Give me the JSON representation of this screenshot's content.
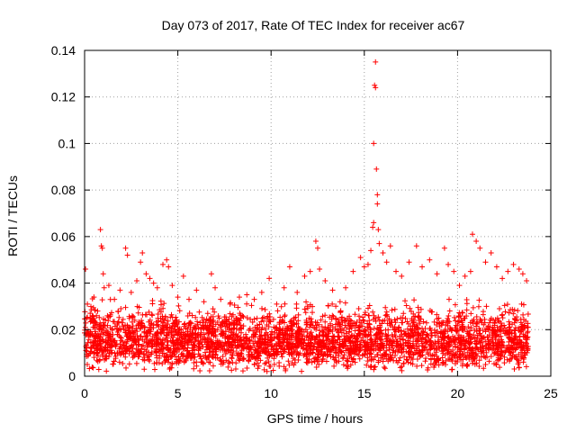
{
  "chart_data": {
    "type": "scatter",
    "title": "Day 073 of 2017, Rate Of TEC Index for receiver ac67",
    "xlabel": "GPS time / hours",
    "ylabel": "ROTI / TECUs",
    "xlim": [
      0,
      25
    ],
    "ylim": [
      0,
      0.14
    ],
    "grid": true,
    "legend": "none",
    "marker": "plus",
    "color": "#ff0000",
    "xticks": [
      0,
      5,
      10,
      15,
      20,
      25
    ],
    "xtick_labels": [
      "0",
      "5",
      "10",
      "15",
      "20",
      "25"
    ],
    "yticks": [
      0,
      0.02,
      0.04,
      0.06,
      0.08,
      0.1,
      0.12,
      0.14
    ],
    "ytick_labels": [
      "0",
      "0.02",
      "0.04",
      "0.06",
      "0.08",
      "0.1",
      "0.12",
      "0.14"
    ],
    "series": [
      {
        "name": "ROTI",
        "points": [
          [
            0.05,
            0.046
          ],
          [
            0.15,
            0.031
          ],
          [
            0.3,
            0.027
          ],
          [
            0.5,
            0.034
          ],
          [
            0.7,
            0.028
          ],
          [
            0.85,
            0.063
          ],
          [
            0.9,
            0.056
          ],
          [
            0.95,
            0.055
          ],
          [
            1.0,
            0.044
          ],
          [
            1.05,
            0.038
          ],
          [
            1.3,
            0.039
          ],
          [
            1.6,
            0.033
          ],
          [
            1.9,
            0.037
          ],
          [
            2.2,
            0.055
          ],
          [
            2.3,
            0.052
          ],
          [
            2.5,
            0.036
          ],
          [
            2.8,
            0.041
          ],
          [
            3.0,
            0.049
          ],
          [
            3.1,
            0.053
          ],
          [
            3.3,
            0.044
          ],
          [
            3.5,
            0.042
          ],
          [
            3.7,
            0.04
          ],
          [
            3.9,
            0.038
          ],
          [
            4.2,
            0.048
          ],
          [
            4.4,
            0.05
          ],
          [
            4.5,
            0.047
          ],
          [
            4.7,
            0.039
          ],
          [
            5.0,
            0.034
          ],
          [
            5.3,
            0.043
          ],
          [
            5.6,
            0.033
          ],
          [
            6.0,
            0.037
          ],
          [
            6.4,
            0.032
          ],
          [
            6.8,
            0.044
          ],
          [
            7.0,
            0.038
          ],
          [
            7.3,
            0.033
          ],
          [
            7.8,
            0.031
          ],
          [
            8.3,
            0.034
          ],
          [
            8.7,
            0.035
          ],
          [
            9.1,
            0.033
          ],
          [
            9.5,
            0.036
          ],
          [
            9.9,
            0.042
          ],
          [
            10.3,
            0.031
          ],
          [
            10.7,
            0.038
          ],
          [
            11.0,
            0.047
          ],
          [
            11.4,
            0.036
          ],
          [
            11.8,
            0.043
          ],
          [
            12.1,
            0.045
          ],
          [
            12.4,
            0.058
          ],
          [
            12.5,
            0.055
          ],
          [
            12.6,
            0.046
          ],
          [
            12.9,
            0.041
          ],
          [
            13.3,
            0.037
          ],
          [
            13.7,
            0.032
          ],
          [
            14.0,
            0.038
          ],
          [
            14.4,
            0.045
          ],
          [
            14.8,
            0.051
          ],
          [
            15.0,
            0.047
          ],
          [
            15.2,
            0.048
          ],
          [
            15.35,
            0.054
          ],
          [
            15.45,
            0.064
          ],
          [
            15.5,
            0.066
          ],
          [
            15.5,
            0.1
          ],
          [
            15.55,
            0.125
          ],
          [
            15.6,
            0.135
          ],
          [
            15.6,
            0.124
          ],
          [
            15.65,
            0.089
          ],
          [
            15.7,
            0.078
          ],
          [
            15.7,
            0.074
          ],
          [
            15.75,
            0.063
          ],
          [
            15.8,
            0.057
          ],
          [
            16.0,
            0.053
          ],
          [
            16.2,
            0.049
          ],
          [
            16.4,
            0.056
          ],
          [
            16.7,
            0.045
          ],
          [
            17.0,
            0.043
          ],
          [
            17.4,
            0.049
          ],
          [
            17.8,
            0.056
          ],
          [
            18.1,
            0.047
          ],
          [
            18.5,
            0.05
          ],
          [
            18.9,
            0.044
          ],
          [
            19.3,
            0.055
          ],
          [
            19.5,
            0.048
          ],
          [
            19.8,
            0.045
          ],
          [
            20.1,
            0.039
          ],
          [
            20.4,
            0.043
          ],
          [
            20.7,
            0.045
          ],
          [
            20.8,
            0.061
          ],
          [
            21.0,
            0.058
          ],
          [
            21.2,
            0.055
          ],
          [
            21.5,
            0.049
          ],
          [
            21.8,
            0.053
          ],
          [
            22.1,
            0.047
          ],
          [
            22.4,
            0.042
          ],
          [
            22.7,
            0.045
          ],
          [
            23.0,
            0.048
          ],
          [
            23.3,
            0.046
          ],
          [
            23.5,
            0.044
          ],
          [
            23.7,
            0.041
          ]
        ],
        "dense_band": {
          "x_range": [
            0,
            23.8
          ],
          "y_range": [
            0.002,
            0.035
          ],
          "typical": 0.015,
          "description": "Dense cluster of ROTI values across the full day"
        }
      }
    ]
  }
}
